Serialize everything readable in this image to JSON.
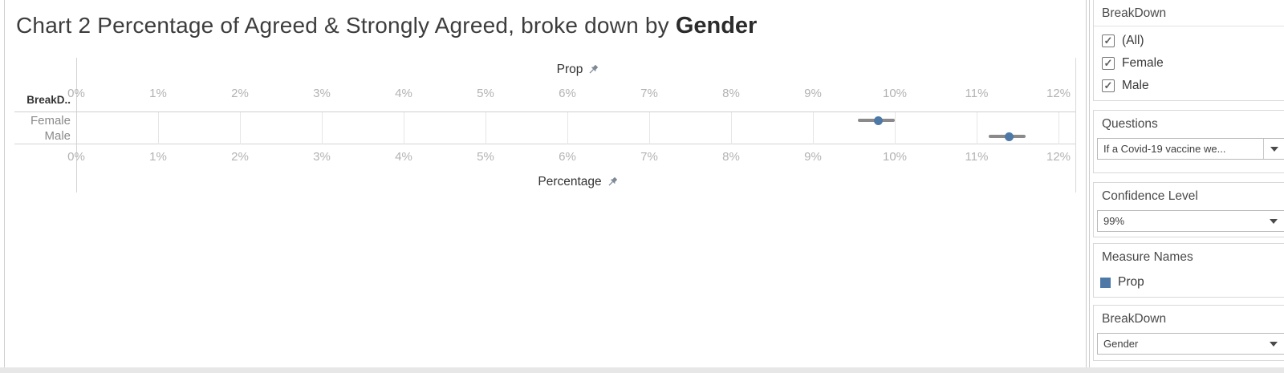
{
  "title": {
    "prefix": "Chart 2 Percentage of Agreed & Strongly Agreed, broke down by",
    "emphasis": "Gender"
  },
  "chart_data": {
    "type": "scatter",
    "subtype": "horizontal-confidence-interval",
    "row_header": "BreakD..",
    "categories": [
      "Female",
      "Male"
    ],
    "series": [
      {
        "name": "Prop",
        "values": [
          9.8,
          11.4
        ],
        "ci_low": [
          9.55,
          11.15
        ],
        "ci_high": [
          10.0,
          11.6
        ]
      }
    ],
    "top_axis_label": "Prop",
    "bottom_axis_label": "Percentage",
    "tick_min": 0,
    "tick_max": 12,
    "tick_step": 1,
    "tick_suffix": "%",
    "xlim": [
      0,
      12.2
    ],
    "grid": "vertical-only",
    "point_color": "#4e79a7",
    "errorbar_color": "#8a8a8a"
  },
  "sidebar": {
    "filter_breakdown": {
      "title": "BreakDown",
      "options": [
        {
          "label": "(All)",
          "checked": true,
          "check_glyph": "✓"
        },
        {
          "label": "Female",
          "checked": true,
          "check_glyph": "✓"
        },
        {
          "label": "Male",
          "checked": true,
          "check_glyph": "✓"
        }
      ]
    },
    "questions": {
      "title": "Questions",
      "value": "If a Covid-19 vaccine we..."
    },
    "confidence": {
      "title": "Confidence Level",
      "value": "99%"
    },
    "measures": {
      "title": "Measure Names",
      "legend": [
        {
          "label": "Prop",
          "color": "#4e79a7"
        }
      ]
    },
    "param_breakdown": {
      "title": "BreakDown",
      "value": "Gender"
    }
  }
}
